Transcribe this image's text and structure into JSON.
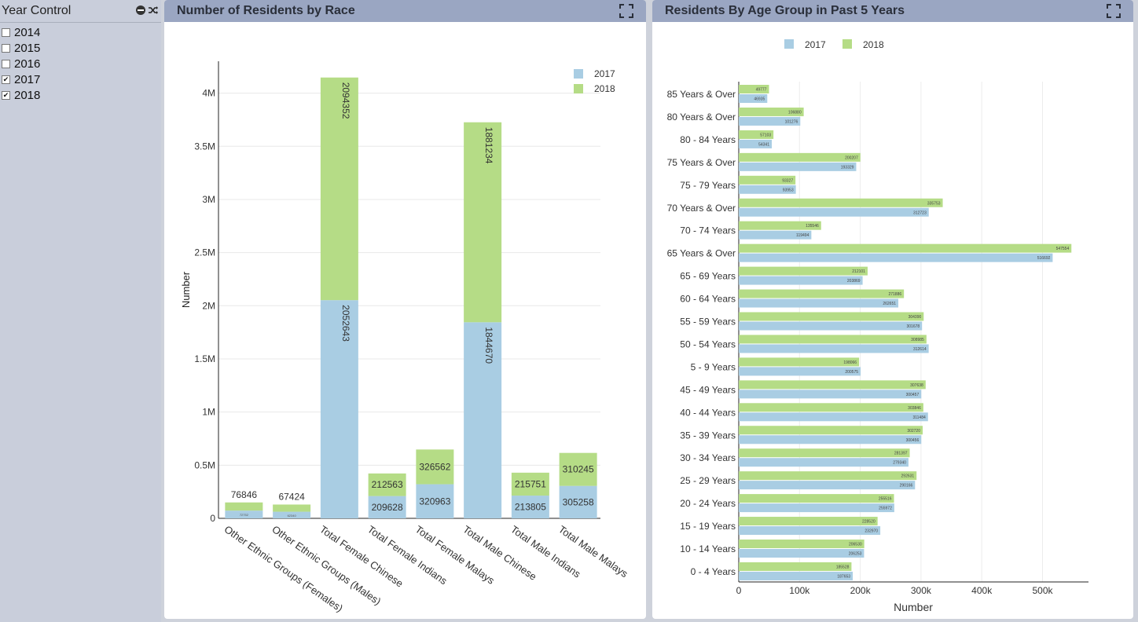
{
  "sidebar": {
    "title": "Year Control",
    "years": [
      {
        "label": "2014",
        "checked": false
      },
      {
        "label": "2015",
        "checked": false
      },
      {
        "label": "2016",
        "checked": false
      },
      {
        "label": "2017",
        "checked": true
      },
      {
        "label": "2018",
        "checked": true
      }
    ]
  },
  "colors": {
    "y2017": "#a9cde3",
    "y2018": "#b5dc86"
  },
  "chart_data": [
    {
      "type": "bar",
      "stacked": true,
      "title": "Number of Residents by Race",
      "xlabel": "",
      "ylabel": "Number",
      "ylim": [
        0,
        4300000
      ],
      "yticks": [
        "0",
        "0.5M",
        "1M",
        "1.5M",
        "2M",
        "2.5M",
        "3M",
        "3.5M",
        "4M"
      ],
      "categories": [
        "Other Ethnic Groups (Females)",
        "Other Ethnic Groups (Males)",
        "Total Female Chinese",
        "Total Female Indians",
        "Total Female Malays",
        "Total Male Chinese",
        "Total Male Indians",
        "Total Male Malays"
      ],
      "category_labels": [
        "Other Ethnic Groups (Females)",
        "Other Ethnic Groups (Males)",
        "Total Female Chinese",
        "Total Female Indians",
        "Total Female Malays",
        "Total Male Chinese",
        "Total Male Indians",
        "Total Male Malays"
      ],
      "legend": [
        "2017",
        "2018"
      ],
      "series": [
        {
          "name": "2017",
          "values": [
            72752,
            62340,
            2052643,
            209628,
            320963,
            1844670,
            213805,
            305258
          ],
          "labels": [
            "72752",
            "62340",
            "2052643",
            "209628",
            "320963",
            "1844670",
            "213805",
            "305258"
          ]
        },
        {
          "name": "2018",
          "values": [
            76846,
            67424,
            2094352,
            212563,
            326562,
            1881234,
            215751,
            310245
          ],
          "labels": [
            "76846",
            "67424",
            "2094352",
            "212563",
            "326562",
            "1881234",
            "215751",
            "310245"
          ]
        }
      ]
    },
    {
      "type": "bar",
      "orientation": "horizontal",
      "title": "Residents By Age Group in Past 5 Years",
      "xlabel": "Number",
      "ylabel": "",
      "xlim": [
        0,
        575000
      ],
      "xticks": [
        "0",
        "100k",
        "200k",
        "300k",
        "400k",
        "500k"
      ],
      "legend": [
        "2017",
        "2018"
      ],
      "categories": [
        "85 Years & Over",
        "80 Years & Over",
        "80 - 84 Years",
        "75 Years & Over",
        "75 - 79 Years",
        "70 Years & Over",
        "70 - 74 Years",
        "65 Years & Over",
        "65 - 69 Years",
        "60 - 64 Years",
        "55 - 59 Years",
        "50 - 54 Years",
        "5  -  9 Years",
        "45 - 49 Years",
        "40 - 44 Years",
        "35 - 39 Years",
        "30 - 34 Years",
        "25 - 29 Years",
        "20 - 24 Years",
        "15 - 19 Years",
        "10 - 14 Years",
        "0  -  4 Years"
      ],
      "series": [
        {
          "name": "2017",
          "values": [
            46935,
            101276,
            54341,
            193329,
            93953,
            312723,
            119494,
            516692,
            203869,
            262651,
            301678,
            312614,
            200575,
            300457,
            311484,
            300456,
            279340,
            290166,
            255972,
            232970,
            206253,
            187653
          ],
          "labels": [
            "46935",
            "101276",
            "54341",
            "193329",
            "93953",
            "312723",
            "119494",
            "516692",
            "203869",
            "262651",
            "301678",
            "312614",
            "200575",
            "300457",
            "311484",
            "300456",
            "279340",
            "290166",
            "255972",
            "232970",
            "206253",
            "187653"
          ]
        },
        {
          "name": "2018",
          "values": [
            49777,
            106880,
            57103,
            200207,
            93327,
            335753,
            135546,
            547554,
            212101,
            271886,
            304390,
            308985,
            198066,
            307638,
            303846,
            302720,
            281397,
            292631,
            255516,
            228520,
            206530,
            185528
          ],
          "labels": [
            "49777",
            "106880",
            "57103",
            "200207",
            "93327",
            "335753",
            "135546",
            "547554",
            "212101",
            "271886",
            "304390",
            "308985",
            "198066",
            "307638",
            "303846",
            "302720",
            "281397",
            "292631",
            "255516",
            "228520",
            "206530",
            "185528"
          ]
        }
      ]
    }
  ]
}
